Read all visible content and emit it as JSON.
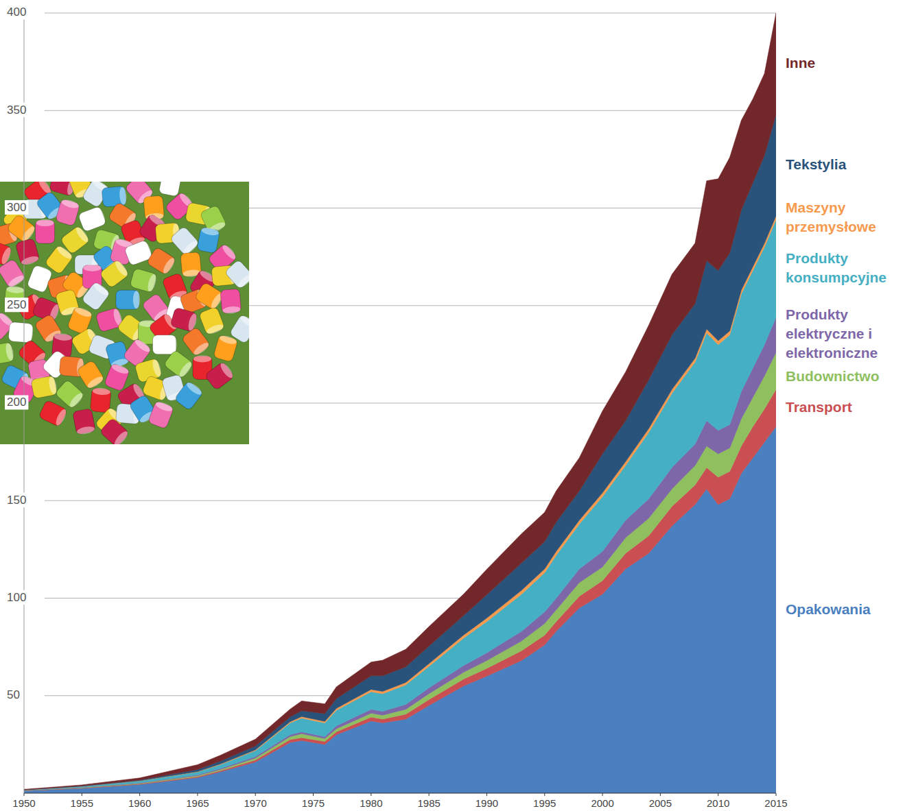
{
  "chart_data": {
    "type": "area",
    "stacked": true,
    "legend": "right",
    "grid": true,
    "xlim": [
      1950,
      2015
    ],
    "xticks": [
      1950,
      1955,
      1960,
      1965,
      1970,
      1975,
      1980,
      1985,
      1990,
      1995,
      2000,
      2005,
      2010,
      2015
    ],
    "ylim": [
      0,
      400
    ],
    "yticks": [
      50,
      100,
      150,
      200,
      250,
      300,
      350,
      400
    ],
    "x": [
      1950,
      1955,
      1960,
      1965,
      1967,
      1970,
      1973,
      1974,
      1976,
      1977,
      1980,
      1981,
      1983,
      1985,
      1988,
      1990,
      1993,
      1995,
      1996,
      1998,
      2000,
      2002,
      2004,
      2006,
      2008,
      2009,
      2010,
      2011,
      2012,
      2013,
      2014,
      2015
    ],
    "series": [
      {
        "name": "Opakowania",
        "color": "#4a80c0",
        "values": [
          1.2,
          2.5,
          4.5,
          8,
          11,
          16,
          26,
          27,
          25,
          30,
          37,
          36,
          38,
          45,
          55,
          60,
          68,
          76,
          83,
          95,
          102,
          115,
          123,
          137,
          148,
          156,
          148,
          151,
          164,
          172,
          180,
          188
        ]
      },
      {
        "name": "Transport",
        "color": "#c94f52",
        "values": [
          0.1,
          0.2,
          0.3,
          0.5,
          0.6,
          1,
          1.5,
          1.5,
          1.5,
          1.5,
          2,
          2,
          2.5,
          3,
          3.5,
          4,
          5,
          5,
          5,
          6,
          7,
          8,
          9,
          10,
          10,
          11,
          14,
          14,
          14,
          16,
          17,
          19
        ]
      },
      {
        "name": "Budownictwo",
        "color": "#8fbf5f",
        "values": [
          0.1,
          0.2,
          0.3,
          0.5,
          0.6,
          1,
          1.5,
          2,
          1.5,
          1.5,
          2,
          2,
          2.5,
          3,
          3.5,
          4,
          5,
          6,
          6,
          7,
          7,
          8,
          9,
          9,
          10,
          11,
          12,
          12,
          14,
          15,
          17,
          19
        ]
      },
      {
        "name": "Produkty elektryczne i elektroniczne",
        "color": "#7d67a8",
        "values": [
          0.05,
          0.1,
          0.2,
          0.4,
          0.5,
          0.8,
          1,
          1,
          1,
          1.5,
          2,
          2,
          2.5,
          3,
          3.5,
          4,
          5,
          6,
          6,
          7,
          8,
          9,
          10,
          11,
          11,
          13,
          12,
          12,
          14,
          15,
          16,
          18
        ]
      },
      {
        "name": "Produkty konsumpcyjne",
        "color": "#45afc3",
        "values": [
          0.2,
          0.5,
          1,
          1.5,
          2,
          3,
          6,
          7,
          7,
          8,
          9,
          9,
          10,
          11,
          14,
          16,
          19,
          20,
          22,
          23,
          28,
          28,
          34,
          38,
          42,
          45,
          44,
          46,
          50,
          50,
          50,
          50
        ]
      },
      {
        "name": "Maszyny przemysłowe",
        "color": "#f59a4e",
        "values": [
          0.02,
          0.05,
          0.1,
          0.2,
          0.3,
          0.4,
          0.6,
          0.8,
          0.8,
          1,
          1.2,
          1.2,
          1.3,
          1.4,
          1.6,
          1.8,
          2,
          2,
          2,
          2,
          2,
          2,
          2,
          2,
          2,
          2,
          2,
          2,
          2,
          2,
          2,
          2
        ]
      },
      {
        "name": "Tekstylia",
        "color": "#29537a",
        "values": [
          0.1,
          0.2,
          0.4,
          1,
          1.5,
          2,
          2.5,
          3,
          4,
          5,
          7,
          8,
          8,
          9,
          10,
          12,
          14,
          14,
          15,
          15,
          20,
          21,
          25,
          28,
          28,
          35,
          36,
          40,
          41,
          43,
          45,
          52
        ]
      },
      {
        "name": "Inne",
        "color": "#72282a",
        "values": [
          0.2,
          0.5,
          1,
          2.5,
          3,
          3.5,
          4,
          5,
          5,
          6,
          7,
          8,
          9,
          10,
          11,
          13,
          15,
          15,
          16,
          17,
          22,
          25,
          28,
          31,
          31,
          41,
          47,
          49,
          46,
          43,
          42,
          52
        ]
      }
    ]
  }
}
